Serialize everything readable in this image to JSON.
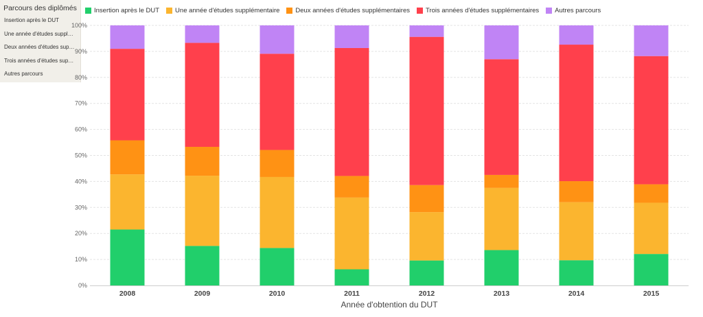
{
  "sidebar": {
    "title": "Parcours des diplômés",
    "items": [
      {
        "label": "Insertion après le DUT"
      },
      {
        "label": "Une année d'études supplémentaire"
      },
      {
        "label": "Deux années d'études supplémentaires"
      },
      {
        "label": "Trois années d'études supplémentaires"
      },
      {
        "label": "Autres parcours"
      }
    ]
  },
  "chart_data": {
    "type": "bar",
    "stacked": true,
    "normalized": true,
    "categories": [
      "2008",
      "2009",
      "2010",
      "2011",
      "2012",
      "2013",
      "2014",
      "2015"
    ],
    "xlabel": "Année d'obtention du DUT",
    "ylabel": "",
    "ylim": [
      0,
      100
    ],
    "yticks": [
      "0%",
      "10%",
      "20%",
      "30%",
      "40%",
      "50%",
      "60%",
      "70%",
      "80%",
      "90%",
      "100%"
    ],
    "legend_position": "top",
    "series": [
      {
        "name": "Insertion après le DUT",
        "color": "#21cf6b",
        "values": [
          21.5,
          15.2,
          14.4,
          6.2,
          9.6,
          13.6,
          9.7,
          12.1
        ]
      },
      {
        "name": "Une année d'études supplémentaire",
        "color": "#fbb52f",
        "values": [
          21.2,
          27.0,
          27.3,
          27.6,
          18.6,
          23.9,
          22.3,
          19.7
        ]
      },
      {
        "name": "Deux années d'études supplémentaires",
        "color": "#ff9214",
        "values": [
          13.1,
          11.1,
          10.4,
          8.3,
          10.4,
          5.0,
          8.1,
          7.1
        ]
      },
      {
        "name": "Trois années d'études supplémentaires",
        "color": "#ff404c",
        "values": [
          35.2,
          40.0,
          37.0,
          49.2,
          57.0,
          44.5,
          52.5,
          49.3
        ]
      },
      {
        "name": "Autres parcours",
        "color": "#c084f5",
        "values": [
          9.0,
          6.7,
          10.9,
          8.7,
          4.4,
          13.0,
          7.4,
          11.8
        ]
      }
    ]
  }
}
